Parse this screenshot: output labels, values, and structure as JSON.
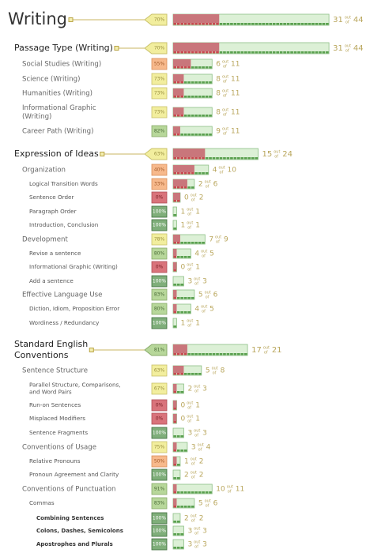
{
  "out_of": [
    "out",
    "of"
  ],
  "rows": [
    {
      "level": 0,
      "label": [
        "Writing"
      ],
      "percent": "70%",
      "correct": 31,
      "total": 44
    },
    {
      "level": 1,
      "label": [
        "Passage Type (Writing)"
      ],
      "percent": "70%",
      "correct": 31,
      "total": 44
    },
    {
      "level": 2,
      "label": [
        "Social Studies (Writing)"
      ],
      "percent": "55%",
      "correct": 6,
      "total": 11
    },
    {
      "level": 2,
      "label": [
        "Science (Writing)"
      ],
      "percent": "73%",
      "correct": 8,
      "total": 11
    },
    {
      "level": 2,
      "label": [
        "Humanities (Writing)"
      ],
      "percent": "73%",
      "correct": 8,
      "total": 11
    },
    {
      "level": 2,
      "label": [
        "Informational Graphic",
        "(Writing)"
      ],
      "percent": "73%",
      "correct": 8,
      "total": 11
    },
    {
      "level": 2,
      "label": [
        "Career Path (Writing)"
      ],
      "percent": "82%",
      "correct": 9,
      "total": 11
    },
    {
      "level": 1,
      "label": [
        "Expression of Ideas"
      ],
      "percent": "63%",
      "correct": 15,
      "total": 24
    },
    {
      "level": 2,
      "label": [
        "Organization"
      ],
      "percent": "40%",
      "correct": 4,
      "total": 10
    },
    {
      "level": 3,
      "label": [
        "Logical Transition Words"
      ],
      "percent": "33%",
      "correct": 2,
      "total": 6
    },
    {
      "level": 3,
      "label": [
        "Sentence Order"
      ],
      "percent": "0%",
      "correct": 0,
      "total": 2
    },
    {
      "level": 3,
      "label": [
        "Paragraph Order"
      ],
      "percent": "100%",
      "correct": 1,
      "total": 1
    },
    {
      "level": 3,
      "label": [
        "Introduction, Conclusion"
      ],
      "percent": "100%",
      "correct": 1,
      "total": 1
    },
    {
      "level": 2,
      "label": [
        "Development"
      ],
      "percent": "78%",
      "correct": 7,
      "total": 9
    },
    {
      "level": 3,
      "label": [
        "Revise a sentence"
      ],
      "percent": "80%",
      "correct": 4,
      "total": 5
    },
    {
      "level": 3,
      "label": [
        "Informational Graphic (Writing)"
      ],
      "percent": "0%",
      "correct": 0,
      "total": 1
    },
    {
      "level": 3,
      "label": [
        "Add a sentence"
      ],
      "percent": "100%",
      "correct": 3,
      "total": 3
    },
    {
      "level": 2,
      "label": [
        "Effective Language Use"
      ],
      "percent": "83%",
      "correct": 5,
      "total": 6
    },
    {
      "level": 3,
      "label": [
        "Diction, Idiom, Proposition Error"
      ],
      "percent": "80%",
      "correct": 4,
      "total": 5
    },
    {
      "level": 3,
      "label": [
        "Wordiness / Redundancy"
      ],
      "percent": "100%",
      "correct": 1,
      "total": 1
    },
    {
      "level": 1,
      "label": [
        "Standard English",
        "Conventions"
      ],
      "percent": "81%",
      "correct": 17,
      "total": 21
    },
    {
      "level": 2,
      "label": [
        "Sentence Structure"
      ],
      "percent": "63%",
      "correct": 5,
      "total": 8
    },
    {
      "level": 3,
      "label": [
        "Parallel Structure, Comparisons,",
        "and Word Pairs"
      ],
      "percent": "67%",
      "correct": 2,
      "total": 3
    },
    {
      "level": 3,
      "label": [
        "Run-on Sentences"
      ],
      "percent": "0%",
      "correct": 0,
      "total": 1
    },
    {
      "level": 3,
      "label": [
        "Misplaced Modifiers"
      ],
      "percent": "0%",
      "correct": 0,
      "total": 1
    },
    {
      "level": 3,
      "label": [
        "Sentence Fragments"
      ],
      "percent": "100%",
      "correct": 3,
      "total": 3
    },
    {
      "level": 2,
      "label": [
        "Conventions of Usage"
      ],
      "percent": "75%",
      "correct": 3,
      "total": 4
    },
    {
      "level": 3,
      "label": [
        "Relative Pronouns"
      ],
      "percent": "50%",
      "correct": 1,
      "total": 2
    },
    {
      "level": 3,
      "label": [
        "Pronoun Agreement and Clarity"
      ],
      "percent": "100%",
      "correct": 2,
      "total": 2
    },
    {
      "level": 2,
      "label": [
        "Conventions of Punctuation"
      ],
      "percent": "91%",
      "correct": 10,
      "total": 11
    },
    {
      "level": 3,
      "label": [
        "Commas"
      ],
      "percent": "83%",
      "correct": 5,
      "total": 6
    },
    {
      "level": 4,
      "label": [
        "Combining Sentences"
      ],
      "percent": "100%",
      "correct": 2,
      "total": 2
    },
    {
      "level": 4,
      "label": [
        "Colons, Dashes, Semicolons"
      ],
      "percent": "100%",
      "correct": 3,
      "total": 3
    },
    {
      "level": 4,
      "label": [
        "Apostrophes and Plurals"
      ],
      "percent": "100%",
      "correct": 3,
      "total": 3
    }
  ]
}
